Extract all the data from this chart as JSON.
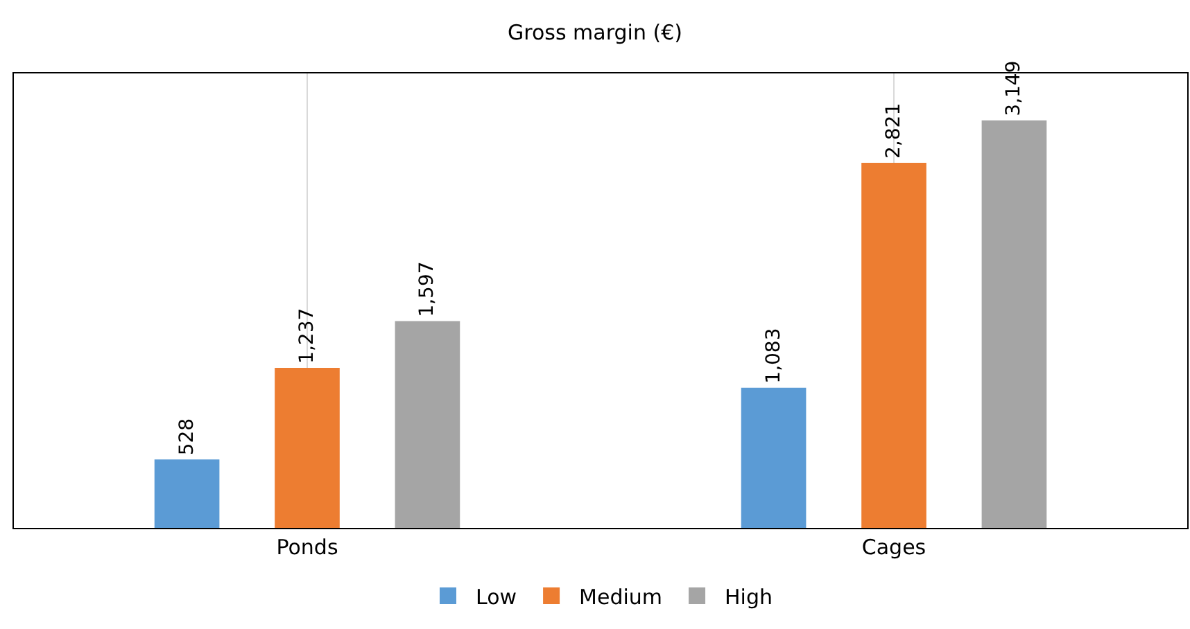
{
  "chart_data": {
    "type": "bar",
    "title": "Gross margin (€)",
    "categories": [
      "Ponds",
      "Cages"
    ],
    "series": [
      {
        "name": "Low",
        "color": "#5b9bd5",
        "values": [
          528,
          1083
        ],
        "value_labels": [
          "528",
          "1,083"
        ]
      },
      {
        "name": "Medium",
        "color": "#ed7d31",
        "values": [
          1237,
          2821
        ],
        "value_labels": [
          "1,237",
          "2,821"
        ]
      },
      {
        "name": "High",
        "color": "#a5a5a5",
        "values": [
          1597,
          3149
        ],
        "value_labels": [
          "1,597",
          "3,149"
        ]
      }
    ],
    "grid": "x",
    "legend": "bottom",
    "tick_labels": "x"
  }
}
